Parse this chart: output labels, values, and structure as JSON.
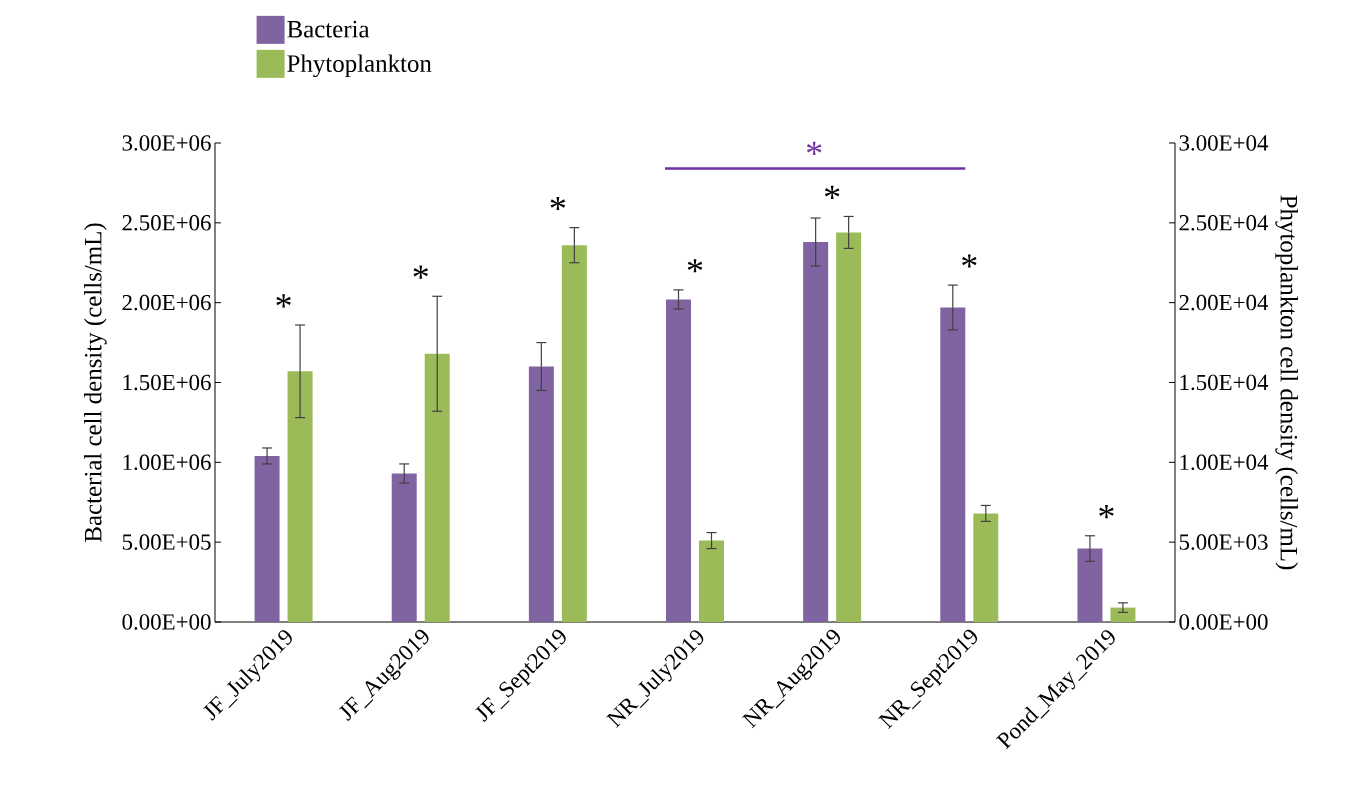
{
  "chart_data": {
    "type": "bar",
    "categories": [
      "JF_July2019",
      "JF_Aug2019",
      "JF_Sept2019",
      "NR_July2019",
      "NR_Aug2019",
      "NR_Sept2019",
      "Pond_May_2019"
    ],
    "series": [
      {
        "name": "Bacteria",
        "color": "#8064a2",
        "values": [
          1040000,
          930000,
          1600000,
          2020000,
          2380000,
          1970000,
          460000
        ],
        "errors": [
          50000,
          60000,
          150000,
          60000,
          150000,
          140000,
          80000
        ]
      },
      {
        "name": "Phytoplankton",
        "color": "#9bbb59",
        "axis": "y2",
        "values": [
          15700,
          16800,
          23600,
          5100,
          24400,
          6800,
          900
        ],
        "errors": [
          2900,
          3600,
          1100,
          500,
          1000,
          500,
          300
        ]
      }
    ],
    "ylabel": "Bacterial cell density (cells/mL)",
    "y2label": "Phytoplankton cell density (cells/mL)",
    "ylim": [
      0,
      3000000
    ],
    "yticks": [
      {
        "value": 0,
        "label": "0.00E+00"
      },
      {
        "value": 500000,
        "label": "5.00E+05"
      },
      {
        "value": 1000000,
        "label": "1.00E+06"
      },
      {
        "value": 1500000,
        "label": "1.50E+06"
      },
      {
        "value": 2000000,
        "label": "2.00E+06"
      },
      {
        "value": 2500000,
        "label": "2.50E+06"
      },
      {
        "value": 3000000,
        "label": "3.00E+06"
      }
    ],
    "y2lim": [
      0,
      30000
    ],
    "y2ticks": [
      {
        "value": 0,
        "label": "0.00E+00"
      },
      {
        "value": 5000,
        "label": "5.00E+03"
      },
      {
        "value": 10000,
        "label": "1.00E+04"
      },
      {
        "value": 15000,
        "label": "1.50E+04"
      },
      {
        "value": 20000,
        "label": "2.00E+04"
      },
      {
        "value": 25000,
        "label": "2.50E+04"
      },
      {
        "value": 30000,
        "label": "3.00E+04"
      }
    ],
    "annotations": [
      "*",
      "*",
      "*",
      "*",
      "*",
      "*",
      "*",
      "*"
    ],
    "legend": "top left"
  }
}
